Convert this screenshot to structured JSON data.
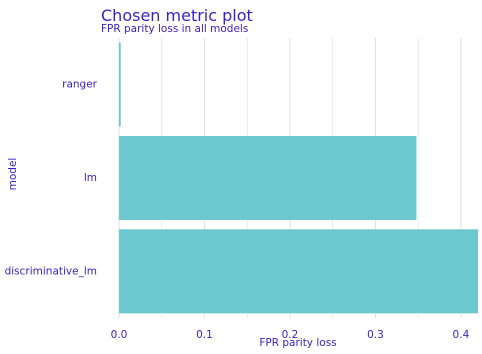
{
  "chart_data": {
    "type": "bar",
    "orientation": "horizontal",
    "title": "Chosen metric plot",
    "subtitle": "FPR parity loss in all models",
    "xlabel": "FPR parity loss",
    "ylabel": "model",
    "categories": [
      "ranger",
      "lm",
      "discriminative_lm"
    ],
    "values": [
      0.002,
      0.348,
      0.42
    ],
    "xlim": [
      0,
      0.42
    ],
    "xticks": [
      0.0,
      0.1,
      0.2,
      0.3,
      0.4
    ],
    "xtick_labels": [
      "0.0",
      "0.1",
      "0.2",
      "0.3",
      "0.4"
    ],
    "grid": true,
    "colors": {
      "bar": "#6cc8cf",
      "text": "#3b22c7",
      "grid": "#e2e2e2"
    }
  }
}
